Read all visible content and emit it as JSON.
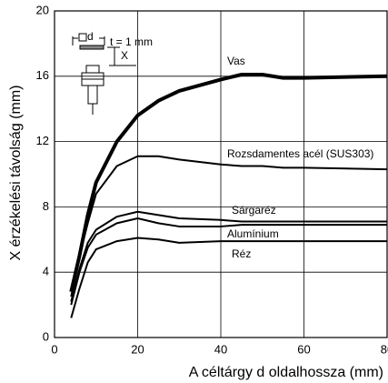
{
  "chart_data": {
    "type": "line",
    "xlabel": "A céltárgy d oldalhossza (mm)",
    "ylabel": "X érzékelési távolság (mm)",
    "x": [
      4,
      6,
      8,
      10,
      15,
      20,
      25,
      30,
      40,
      45,
      50,
      55,
      60,
      80
    ],
    "series": [
      {
        "name": "Vas",
        "color": "#000000",
        "values": [
          2.8,
          5,
          7.5,
          9.5,
          12,
          13.6,
          14.5,
          15.1,
          15.8,
          16.1,
          16.1,
          15.9,
          15.9,
          16
        ]
      },
      {
        "name": "Rozsdamentes acél (SUS303)",
        "color": "#000000",
        "values": [
          2.5,
          5,
          7,
          8.8,
          10.5,
          11.1,
          11.1,
          10.9,
          10.6,
          10.5,
          10.5,
          10.4,
          10.4,
          10.3
        ]
      },
      {
        "name": "Sárgaréz",
        "color": "#000000",
        "values": [
          2.2,
          4.2,
          5.8,
          6.6,
          7.4,
          7.7,
          7.5,
          7.3,
          7.2,
          7.1,
          7.1,
          7.1,
          7.1,
          7.1
        ]
      },
      {
        "name": "Alumínium",
        "color": "#000000",
        "values": [
          2,
          4,
          5.5,
          6.3,
          7,
          7.3,
          7,
          6.8,
          6.8,
          6.9,
          6.9,
          6.9,
          6.9,
          6.9
        ]
      },
      {
        "name": "Réz",
        "color": "#000000",
        "values": [
          1.2,
          3,
          4.6,
          5.4,
          5.9,
          6.1,
          6,
          5.8,
          5.9,
          5.9,
          5.9,
          5.9,
          5.9,
          5.9
        ]
      }
    ],
    "xlim": [
      0,
      80
    ],
    "xticks": [
      0,
      20,
      40,
      60,
      80
    ],
    "ylim": [
      0,
      20
    ],
    "yticks": [
      0,
      4,
      8,
      12,
      16,
      20
    ],
    "grid": true,
    "inset": {
      "d": "d",
      "x": "X",
      "t": "t = 1 mm"
    }
  }
}
